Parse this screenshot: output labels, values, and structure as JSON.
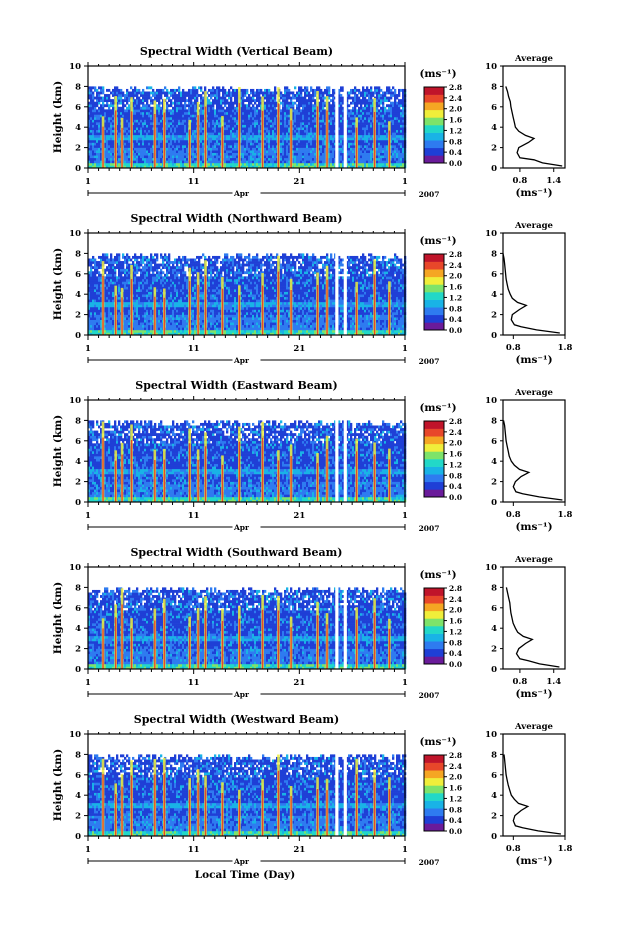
{
  "figure": {
    "x_axis_title": "Local Time (Day)",
    "month_label": "Apr",
    "year_label": "2007",
    "y_axis_title": "Height (km)",
    "unit_label": "(ms⁻¹)",
    "average_title": "Average",
    "average_xlabel": "(ms⁻¹)"
  },
  "colors": {
    "colorbar": [
      "#6a1b9a",
      "#1f3fd6",
      "#2e7bf0",
      "#19b3e6",
      "#22d8c8",
      "#7de36a",
      "#f0ee3a",
      "#f5a623",
      "#e8472a",
      "#c0142a"
    ],
    "background": "#ffffff"
  },
  "chart_data": [
    {
      "type": "heatmap",
      "title": "Spectral Width (Vertical Beam)",
      "x_ticks": [
        "1",
        "11",
        "21",
        "1"
      ],
      "x_range_days": [
        1,
        31
      ],
      "y_ticks": [
        "0",
        "2",
        "4",
        "6",
        "8",
        "10"
      ],
      "ylim": [
        0,
        10
      ],
      "colorbar_ticks": [
        "0.0",
        "0.4",
        "0.8",
        "1.2",
        "1.6",
        "2.0",
        "2.4",
        "2.8"
      ],
      "colorbar_range": [
        0.0,
        2.8
      ],
      "average_profile": {
        "x_ticks": [
          "0.8",
          "1.4"
        ],
        "xlim": [
          0.5,
          1.6
        ],
        "y_ticks": [
          "0",
          "2",
          "4",
          "6",
          "8",
          "10"
        ],
        "height_km": [
          0.2,
          0.5,
          0.8,
          1.0,
          1.5,
          2.0,
          2.5,
          2.9,
          3.2,
          3.6,
          4.0,
          4.5,
          5.0,
          5.5,
          6.0,
          6.5,
          7.0,
          7.5,
          8.0
        ],
        "width": [
          1.55,
          1.2,
          1.05,
          0.8,
          0.75,
          0.78,
          0.95,
          1.05,
          0.9,
          0.78,
          0.72,
          0.7,
          0.68,
          0.66,
          0.64,
          0.63,
          0.6,
          0.58,
          0.55
        ]
      }
    },
    {
      "type": "heatmap",
      "title": "Spectral Width (Northward Beam)",
      "x_ticks": [
        "1",
        "11",
        "21",
        "1"
      ],
      "x_range_days": [
        1,
        31
      ],
      "y_ticks": [
        "0",
        "2",
        "4",
        "6",
        "8",
        "10"
      ],
      "ylim": [
        0,
        10
      ],
      "colorbar_ticks": [
        "0.0",
        "0.4",
        "0.8",
        "1.2",
        "1.6",
        "2.0",
        "2.4",
        "2.8"
      ],
      "colorbar_range": [
        0.0,
        2.8
      ],
      "average_profile": {
        "x_ticks": [
          "0.8",
          "1.8"
        ],
        "xlim": [
          0.6,
          1.8
        ],
        "y_ticks": [
          "0",
          "2",
          "4",
          "6",
          "8",
          "10"
        ],
        "height_km": [
          0.2,
          0.5,
          0.8,
          1.0,
          1.5,
          2.0,
          2.5,
          2.9,
          3.2,
          3.6,
          4.0,
          4.5,
          5.0,
          5.5,
          6.0,
          6.5,
          7.0,
          7.5,
          8.0
        ],
        "width": [
          1.7,
          1.25,
          0.95,
          0.82,
          0.76,
          0.78,
          0.92,
          1.05,
          0.88,
          0.78,
          0.74,
          0.7,
          0.68,
          0.66,
          0.65,
          0.64,
          0.63,
          0.62,
          0.6
        ]
      }
    },
    {
      "type": "heatmap",
      "title": "Spectral Width (Eastward Beam)",
      "x_ticks": [
        "1",
        "11",
        "21",
        "1"
      ],
      "x_range_days": [
        1,
        31
      ],
      "y_ticks": [
        "0",
        "2",
        "4",
        "6",
        "8",
        "10"
      ],
      "ylim": [
        0,
        10
      ],
      "colorbar_ticks": [
        "0.0",
        "0.4",
        "0.8",
        "1.2",
        "1.6",
        "2.0",
        "2.4",
        "2.8"
      ],
      "colorbar_range": [
        0.0,
        2.8
      ],
      "average_profile": {
        "x_ticks": [
          "0.8",
          "1.8"
        ],
        "xlim": [
          0.6,
          1.8
        ],
        "y_ticks": [
          "0",
          "2",
          "4",
          "6",
          "8",
          "10"
        ],
        "height_km": [
          0.2,
          0.5,
          0.8,
          1.0,
          1.5,
          2.0,
          2.5,
          2.9,
          3.2,
          3.6,
          4.0,
          4.5,
          5.0,
          5.5,
          6.0,
          6.5,
          7.0,
          7.5,
          8.0
        ],
        "width": [
          1.75,
          1.3,
          0.98,
          0.85,
          0.8,
          0.84,
          0.95,
          1.1,
          0.92,
          0.82,
          0.76,
          0.72,
          0.7,
          0.68,
          0.66,
          0.65,
          0.64,
          0.63,
          0.61
        ]
      }
    },
    {
      "type": "heatmap",
      "title": "Spectral Width (Southward Beam)",
      "x_ticks": [
        "1",
        "11",
        "21",
        "1"
      ],
      "x_range_days": [
        1,
        31
      ],
      "y_ticks": [
        "0",
        "2",
        "4",
        "6",
        "8",
        "10"
      ],
      "ylim": [
        0,
        10
      ],
      "colorbar_ticks": [
        "0.0",
        "0.4",
        "0.8",
        "1.2",
        "1.6",
        "2.0",
        "2.4",
        "2.8"
      ],
      "colorbar_range": [
        0.0,
        2.8
      ],
      "average_profile": {
        "x_ticks": [
          "0.8",
          "1.4"
        ],
        "xlim": [
          0.5,
          1.6
        ],
        "y_ticks": [
          "0",
          "2",
          "4",
          "6",
          "8",
          "10"
        ],
        "height_km": [
          0.2,
          0.5,
          0.8,
          1.0,
          1.5,
          2.0,
          2.5,
          2.9,
          3.2,
          3.6,
          4.0,
          4.5,
          5.0,
          5.5,
          6.0,
          6.5,
          7.0,
          7.5,
          8.0
        ],
        "width": [
          1.5,
          1.15,
          0.95,
          0.8,
          0.74,
          0.78,
          0.9,
          1.02,
          0.86,
          0.76,
          0.72,
          0.68,
          0.66,
          0.64,
          0.63,
          0.62,
          0.6,
          0.58,
          0.56
        ]
      }
    },
    {
      "type": "heatmap",
      "title": "Spectral Width (Westward Beam)",
      "x_ticks": [
        "1",
        "11",
        "21",
        "1"
      ],
      "x_range_days": [
        1,
        31
      ],
      "y_ticks": [
        "0",
        "2",
        "4",
        "6",
        "8",
        "10"
      ],
      "ylim": [
        0,
        10
      ],
      "colorbar_ticks": [
        "0.0",
        "0.4",
        "0.8",
        "1.2",
        "1.6",
        "2.0",
        "2.4",
        "2.8"
      ],
      "colorbar_range": [
        0.0,
        2.8
      ],
      "average_profile": {
        "x_ticks": [
          "0.8",
          "1.8"
        ],
        "xlim": [
          0.6,
          1.8
        ],
        "y_ticks": [
          "0",
          "2",
          "4",
          "6",
          "8",
          "10"
        ],
        "height_km": [
          0.2,
          0.5,
          0.8,
          1.0,
          1.5,
          2.0,
          2.5,
          2.9,
          3.2,
          3.6,
          4.0,
          4.5,
          5.0,
          5.5,
          6.0,
          6.5,
          7.0,
          7.5,
          8.0
        ],
        "width": [
          1.72,
          1.28,
          0.98,
          0.84,
          0.8,
          0.83,
          0.95,
          1.08,
          0.9,
          0.82,
          0.76,
          0.73,
          0.7,
          0.68,
          0.66,
          0.65,
          0.64,
          0.63,
          0.62
        ]
      }
    }
  ]
}
